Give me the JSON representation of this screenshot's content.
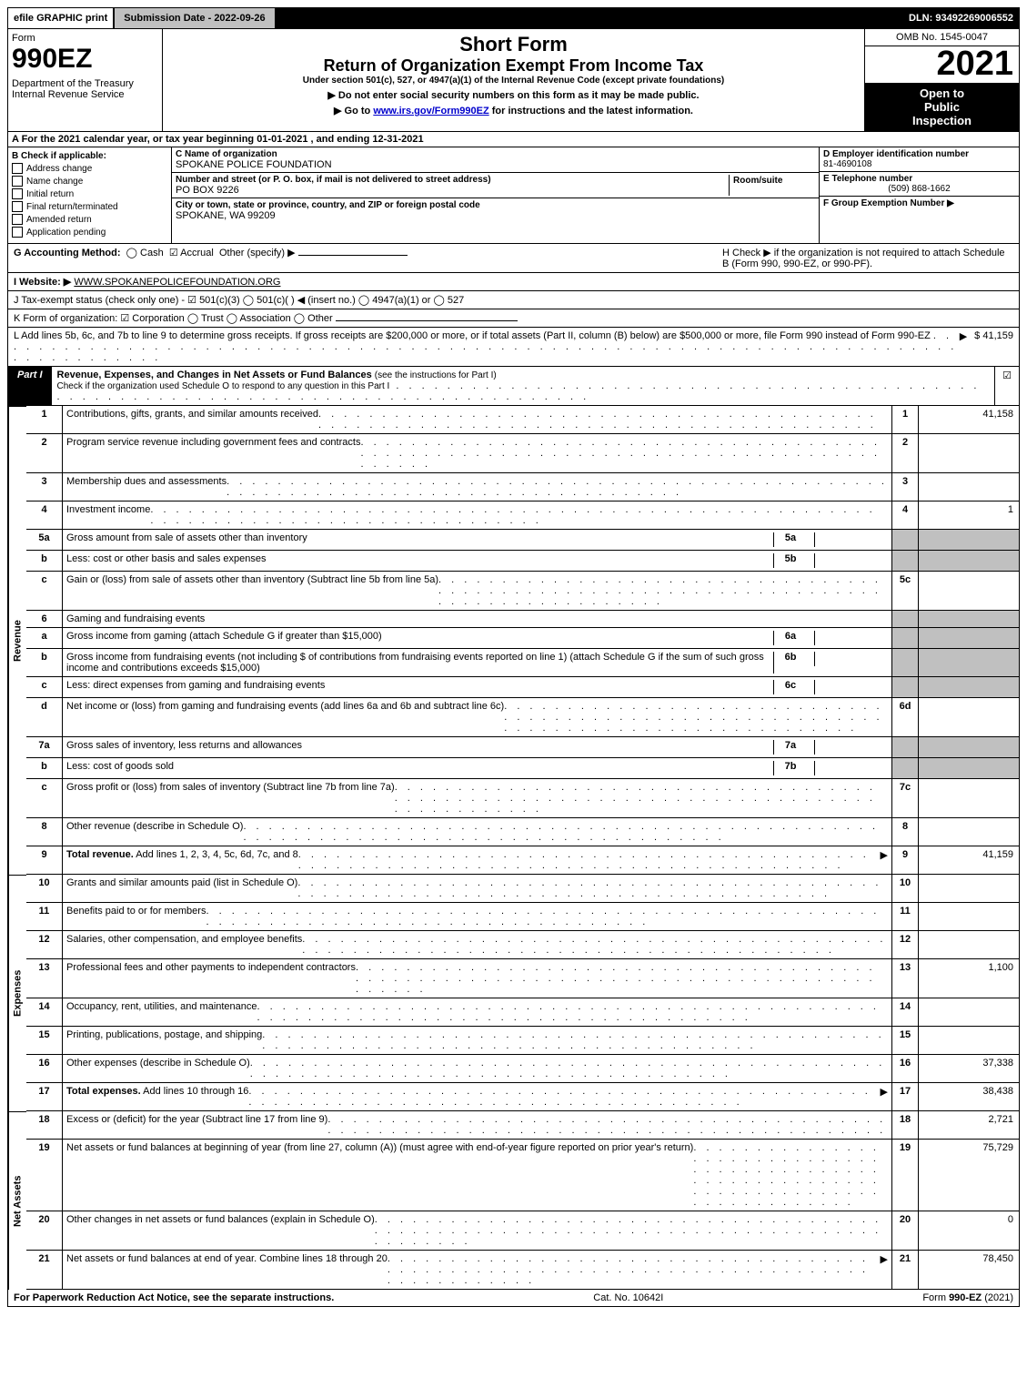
{
  "topbar": {
    "efile": "efile GRAPHIC print",
    "subdate": "Submission Date - 2022-09-26",
    "dln": "DLN: 93492269006552"
  },
  "header": {
    "form_word": "Form",
    "form_num": "990EZ",
    "dept": "Department of the Treasury\nInternal Revenue Service",
    "short_form": "Short Form",
    "main_title": "Return of Organization Exempt From Income Tax",
    "subline": "Under section 501(c), 527, or 4947(a)(1) of the Internal Revenue Code (except private foundations)",
    "warn_line": "▶ Do not enter social security numbers on this form as it may be made public.",
    "goto_pre": "▶ Go to ",
    "goto_link": "www.irs.gov/Form990EZ",
    "goto_post": " for instructions and the latest information.",
    "omb": "OMB No. 1545-0047",
    "year": "2021",
    "open1": "Open to",
    "open2": "Public",
    "open3": "Inspection"
  },
  "line_a": "A  For the 2021 calendar year, or tax year beginning 01-01-2021 , and ending 12-31-2021",
  "block_b": {
    "hdr": "B  Check if applicable:",
    "address_change": "Address change",
    "name_change": "Name change",
    "initial_return": "Initial return",
    "final_return": "Final return/terminated",
    "amended": "Amended return",
    "app_pending": "Application pending"
  },
  "block_c": {
    "name_lbl": "C Name of organization",
    "name_val": "SPOKANE POLICE FOUNDATION",
    "street_lbl": "Number and street (or P. O. box, if mail is not delivered to street address)",
    "street_val": "PO BOX 9226",
    "room_lbl": "Room/suite",
    "city_lbl": "City or town, state or province, country, and ZIP or foreign postal code",
    "city_val": "SPOKANE, WA  99209"
  },
  "block_d": {
    "ein_lbl": "D Employer identification number",
    "ein_val": "81-4690108",
    "tel_lbl": "E Telephone number",
    "tel_val": "(509) 868-1662",
    "grp_lbl": "F Group Exemption Number   ▶"
  },
  "line_g": {
    "lbl": "G Accounting Method:",
    "cash": "Cash",
    "accrual": "Accrual",
    "other": "Other (specify) ▶"
  },
  "line_h": "H  Check ▶      if the organization is not required to attach Schedule B (Form 990, 990-EZ, or 990-PF).",
  "line_i": {
    "lbl": "I Website: ▶",
    "val": "WWW.SPOKANEPOLICEFOUNDATION.ORG"
  },
  "line_j": "J Tax-exempt status (check only one) - ☑ 501(c)(3)   ◯ 501(c)(  ) ◀ (insert no.)   ◯ 4947(a)(1) or   ◯ 527",
  "line_k": "K Form of organization:   ☑ Corporation   ◯ Trust   ◯ Association   ◯ Other",
  "line_l": {
    "text": "L Add lines 5b, 6c, and 7b to line 9 to determine gross receipts. If gross receipts are $200,000 or more, or if total assets (Part II, column (B) below) are $500,000 or more, file Form 990 instead of Form 990-EZ",
    "arrow": "▶",
    "val": "$ 41,159"
  },
  "part1": {
    "label": "Part I",
    "title": "Revenue, Expenses, and Changes in Net Assets or Fund Balances",
    "title_paren": "(see the instructions for Part I)",
    "sub": "Check if the organization used Schedule O to respond to any question in this Part I",
    "checked": "☑"
  },
  "vlabels": {
    "revenue": "Revenue",
    "expenses": "Expenses",
    "netassets": "Net Assets"
  },
  "rows": [
    {
      "n": "1",
      "desc": "Contributions, gifts, grants, and similar amounts received",
      "r": "1",
      "v": "41,158"
    },
    {
      "n": "2",
      "desc": "Program service revenue including government fees and contracts",
      "r": "2",
      "v": ""
    },
    {
      "n": "3",
      "desc": "Membership dues and assessments",
      "r": "3",
      "v": ""
    },
    {
      "n": "4",
      "desc": "Investment income",
      "r": "4",
      "v": "1"
    },
    {
      "n": "5a",
      "desc": "Gross amount from sale of assets other than inventory",
      "sub": "5a",
      "shadeR": true
    },
    {
      "n": "b",
      "desc": "Less: cost or other basis and sales expenses",
      "sub": "5b",
      "shadeR": true
    },
    {
      "n": "c",
      "desc": "Gain or (loss) from sale of assets other than inventory (Subtract line 5b from line 5a)",
      "r": "5c",
      "v": ""
    },
    {
      "n": "6",
      "desc": "Gaming and fundraising events",
      "shadeR": true,
      "noR": true
    },
    {
      "n": "a",
      "desc": "Gross income from gaming (attach Schedule G if greater than $15,000)",
      "sub": "6a",
      "shadeR": true
    },
    {
      "n": "b",
      "desc": "Gross income from fundraising events (not including $                     of contributions from fundraising events reported on line 1) (attach Schedule G if the sum of such gross income and contributions exceeds $15,000)",
      "sub": "6b",
      "shadeR": true
    },
    {
      "n": "c",
      "desc": "Less: direct expenses from gaming and fundraising events",
      "sub": "6c",
      "shadeR": true
    },
    {
      "n": "d",
      "desc": "Net income or (loss) from gaming and fundraising events (add lines 6a and 6b and subtract line 6c)",
      "r": "6d",
      "v": ""
    },
    {
      "n": "7a",
      "desc": "Gross sales of inventory, less returns and allowances",
      "sub": "7a",
      "shadeR": true
    },
    {
      "n": "b",
      "desc": "Less: cost of goods sold",
      "sub": "7b",
      "shadeR": true
    },
    {
      "n": "c",
      "desc": "Gross profit or (loss) from sales of inventory (Subtract line 7b from line 7a)",
      "r": "7c",
      "v": ""
    },
    {
      "n": "8",
      "desc": "Other revenue (describe in Schedule O)",
      "r": "8",
      "v": ""
    },
    {
      "n": "9",
      "desc": "Total revenue. Add lines 1, 2, 3, 4, 5c, 6d, 7c, and 8",
      "r": "9",
      "v": "41,159",
      "bold": true,
      "arrow": true
    }
  ],
  "exp_rows": [
    {
      "n": "10",
      "desc": "Grants and similar amounts paid (list in Schedule O)",
      "r": "10",
      "v": ""
    },
    {
      "n": "11",
      "desc": "Benefits paid to or for members",
      "r": "11",
      "v": ""
    },
    {
      "n": "12",
      "desc": "Salaries, other compensation, and employee benefits",
      "r": "12",
      "v": ""
    },
    {
      "n": "13",
      "desc": "Professional fees and other payments to independent contractors",
      "r": "13",
      "v": "1,100"
    },
    {
      "n": "14",
      "desc": "Occupancy, rent, utilities, and maintenance",
      "r": "14",
      "v": ""
    },
    {
      "n": "15",
      "desc": "Printing, publications, postage, and shipping",
      "r": "15",
      "v": ""
    },
    {
      "n": "16",
      "desc": "Other expenses (describe in Schedule O)",
      "r": "16",
      "v": "37,338"
    },
    {
      "n": "17",
      "desc": "Total expenses. Add lines 10 through 16",
      "r": "17",
      "v": "38,438",
      "bold": true,
      "arrow": true
    }
  ],
  "na_rows": [
    {
      "n": "18",
      "desc": "Excess or (deficit) for the year (Subtract line 17 from line 9)",
      "r": "18",
      "v": "2,721"
    },
    {
      "n": "19",
      "desc": "Net assets or fund balances at beginning of year (from line 27, column (A)) (must agree with end-of-year figure reported on prior year's return)",
      "r": "19",
      "v": "75,729"
    },
    {
      "n": "20",
      "desc": "Other changes in net assets or fund balances (explain in Schedule O)",
      "r": "20",
      "v": "0"
    },
    {
      "n": "21",
      "desc": "Net assets or fund balances at end of year. Combine lines 18 through 20",
      "r": "21",
      "v": "78,450",
      "arrow": true
    }
  ],
  "footer": {
    "left": "For Paperwork Reduction Act Notice, see the separate instructions.",
    "mid": "Cat. No. 10642I",
    "right_pre": "Form ",
    "right_b": "990-EZ",
    "right_post": " (2021)"
  }
}
